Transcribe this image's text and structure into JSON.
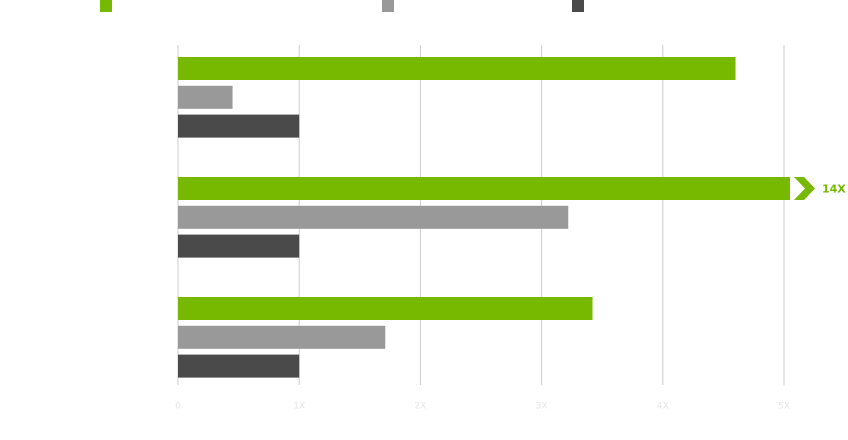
{
  "chart_data": {
    "type": "bar",
    "orientation": "horizontal",
    "categories": [
      null,
      null,
      null
    ],
    "series": [
      {
        "color": "#76b900",
        "values": [
          4.6,
          14,
          3.42
        ],
        "value_labels": [
          null,
          "14X",
          null
        ]
      },
      {
        "color": "#999999",
        "values": [
          0.45,
          3.22,
          1.71
        ]
      },
      {
        "color": "#4a4a4a",
        "values": [
          1.0,
          1.0,
          1.0
        ]
      }
    ],
    "xlim": [
      0,
      5
    ],
    "xticks": [
      0,
      {
        "value": 1,
        "label": "1X"
      },
      {
        "value": 2,
        "label": "2X"
      },
      {
        "value": 3,
        "label": "3X"
      },
      {
        "value": 4,
        "label": "4X"
      },
      {
        "value": 5,
        "label": "5X"
      }
    ],
    "grid": true
  }
}
